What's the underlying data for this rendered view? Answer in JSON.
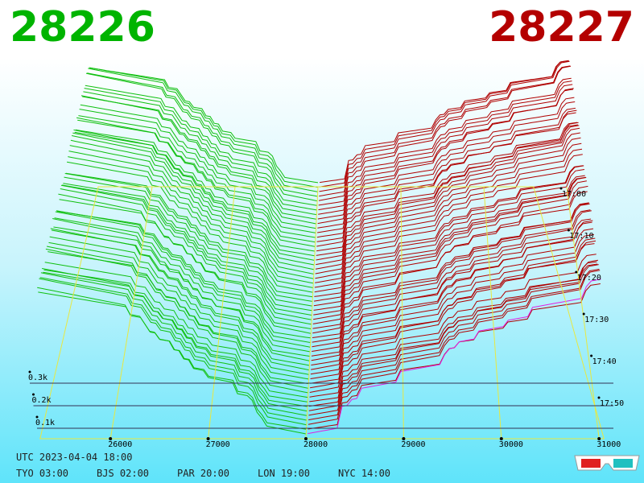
{
  "header": {
    "bid": "28226",
    "ask": "28227"
  },
  "axes": {
    "price_ticks": [
      "26000",
      "27000",
      "28000",
      "29000",
      "30000",
      "31000"
    ],
    "depth_ticks": [
      "0.1k",
      "0.2k",
      "0.3k"
    ],
    "time_ticks": [
      "17:00",
      "17:10",
      "17:20",
      "17:30",
      "17:40",
      "17:50"
    ]
  },
  "footer": {
    "utc": "UTC 2023-04-04 18:00",
    "zones": [
      "TYO 03:00",
      "BJS 02:00",
      "PAR 20:00",
      "LON 19:00",
      "NYC 14:00"
    ]
  }
}
